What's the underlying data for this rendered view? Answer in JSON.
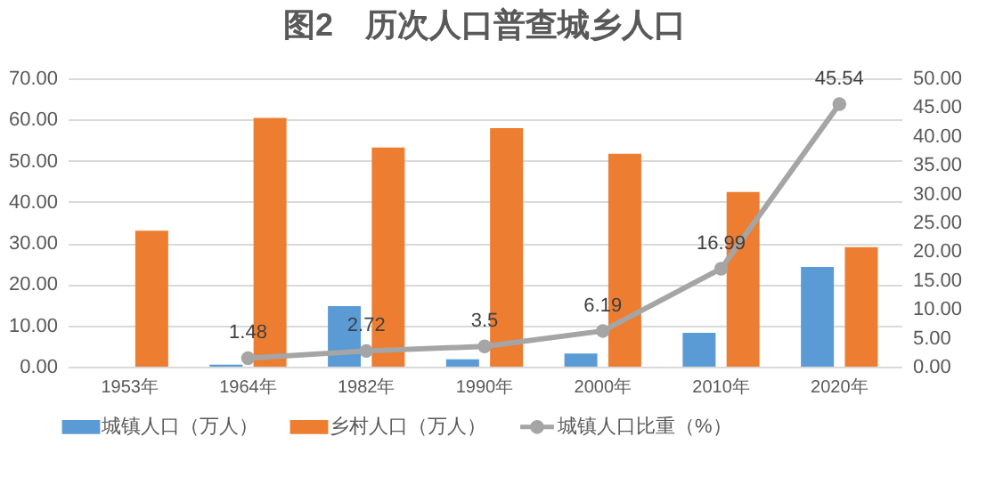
{
  "chart_data": {
    "type": "bar",
    "title": "图2　历次人口普查城乡人口",
    "categories": [
      "1953年",
      "1964年",
      "1982年",
      "1990年",
      "2000年",
      "2010年",
      "2020年"
    ],
    "series": [
      {
        "name": "城镇人口（万人）",
        "color": "#5b9bd5",
        "values": [
          null,
          0.5,
          14.7,
          1.8,
          3.2,
          8.2,
          24.2
        ]
      },
      {
        "name": "乡村人口（万人）",
        "color": "#ed7d31",
        "values": [
          33.0,
          60.4,
          53.2,
          57.9,
          51.7,
          42.4,
          29.0
        ]
      },
      {
        "name": "城镇人口比重（%）",
        "color": "#a5a5a5",
        "type": "line",
        "axis": "y2",
        "marker": "circle",
        "values": [
          null,
          1.48,
          2.72,
          3.5,
          6.19,
          16.99,
          45.54
        ],
        "value_labels": [
          null,
          "1.48",
          "2.72",
          "3.5",
          "6.19",
          "16.99",
          "45.54"
        ]
      }
    ],
    "ylim": [
      0,
      70
    ],
    "yticks": [
      {
        "value": 0,
        "label": "0.00"
      },
      {
        "value": 10,
        "label": "10.00"
      },
      {
        "value": 20,
        "label": "20.00"
      },
      {
        "value": 30,
        "label": "30.00"
      },
      {
        "value": 40,
        "label": "40.00"
      },
      {
        "value": 50,
        "label": "50.00"
      },
      {
        "value": 60,
        "label": "60.00"
      },
      {
        "value": 70,
        "label": "70.00"
      }
    ],
    "y2lim": [
      0,
      50
    ],
    "y2ticks": [
      {
        "value": 0,
        "label": "0.00"
      },
      {
        "value": 5,
        "label": "5.00"
      },
      {
        "value": 10,
        "label": "10.00"
      },
      {
        "value": 15,
        "label": "15.00"
      },
      {
        "value": 20,
        "label": "20.00"
      },
      {
        "value": 25,
        "label": "25.00"
      },
      {
        "value": 30,
        "label": "30.00"
      },
      {
        "value": 35,
        "label": "35.00"
      },
      {
        "value": 40,
        "label": "40.00"
      },
      {
        "value": 45,
        "label": "45.00"
      },
      {
        "value": 50,
        "label": "50.00"
      }
    ],
    "grid": "y",
    "legend": "bottom"
  }
}
